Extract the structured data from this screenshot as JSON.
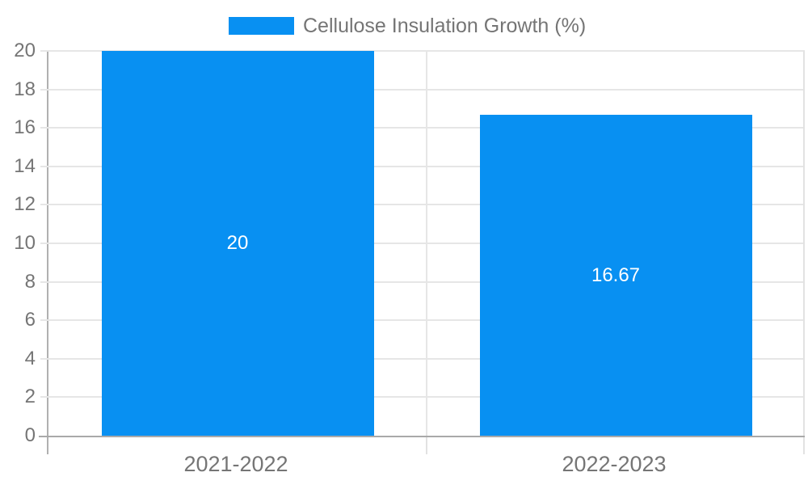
{
  "chart_data": {
    "type": "bar",
    "title": "",
    "legend": {
      "label": "Cellulose Insulation Growth (%)",
      "position": "top"
    },
    "categories": [
      "2021-2022",
      "2022-2023"
    ],
    "series": [
      {
        "name": "Cellulose Insulation Growth (%)",
        "values": [
          20,
          16.67
        ],
        "color": "#0890f2"
      }
    ],
    "bar_value_labels": [
      "20",
      "16.67"
    ],
    "value_label_color": "#ffffff",
    "xlabel": "",
    "ylabel": "",
    "ylim": [
      0,
      20
    ],
    "ytick_step": 2,
    "yticks": [
      0,
      2,
      4,
      6,
      8,
      10,
      12,
      14,
      16,
      18,
      20
    ],
    "grid": true,
    "colors": {
      "background": "#ffffff",
      "axis_text": "#757575",
      "gridline": "#e6e6e6",
      "axis_line": "#b0b0b0"
    }
  }
}
